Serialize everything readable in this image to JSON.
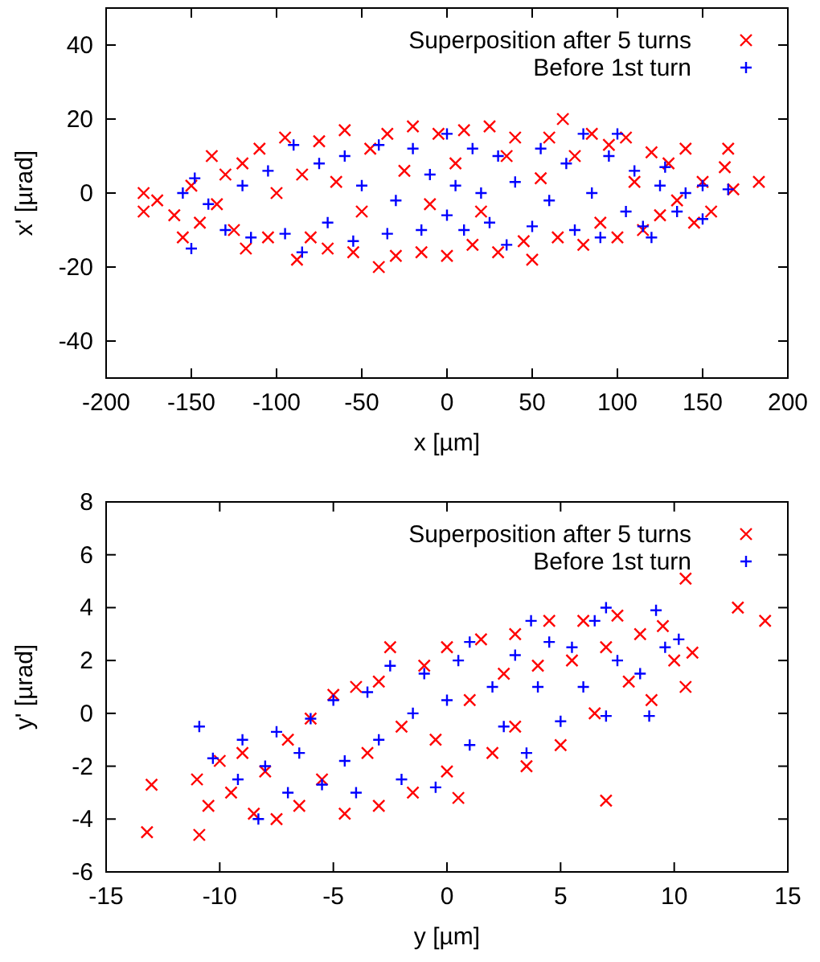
{
  "chart_data": [
    {
      "type": "scatter",
      "xlabel": "x [µm]",
      "ylabel": "x' [µrad]",
      "xlim": [
        -200,
        200
      ],
      "ylim": [
        -50,
        50
      ],
      "xticks": [
        -200,
        -150,
        -100,
        -50,
        0,
        50,
        100,
        150,
        200
      ],
      "yticks": [
        -40,
        -20,
        0,
        20,
        40
      ],
      "legend": "top right",
      "grid": false,
      "series": [
        {
          "name": "Superposition after 5 turns",
          "color": "#ff0000",
          "marker": "cross",
          "x": [
            -178,
            -178,
            -170,
            -160,
            -155,
            -150,
            -145,
            -138,
            -135,
            -130,
            -125,
            -120,
            -118,
            -110,
            -105,
            -100,
            -95,
            -88,
            -85,
            -80,
            -75,
            -70,
            -65,
            -60,
            -55,
            -50,
            -45,
            -40,
            -35,
            -30,
            -25,
            -20,
            -15,
            -10,
            -5,
            0,
            5,
            10,
            15,
            20,
            25,
            30,
            35,
            40,
            45,
            50,
            55,
            60,
            65,
            68,
            75,
            80,
            85,
            90,
            95,
            100,
            105,
            110,
            115,
            120,
            125,
            130,
            135,
            140,
            145,
            150,
            155,
            163,
            165,
            168,
            183
          ],
          "values": [
            0,
            -5,
            -2,
            -6,
            -12,
            2,
            -8,
            10,
            -3,
            5,
            -10,
            8,
            -15,
            12,
            -12,
            0,
            15,
            -18,
            5,
            -12,
            14,
            -15,
            3,
            17,
            -16,
            -5,
            12,
            -20,
            16,
            -17,
            6,
            18,
            -16,
            -3,
            16,
            -17,
            8,
            17,
            -14,
            -5,
            18,
            -16,
            10,
            15,
            -13,
            -18,
            4,
            15,
            -12,
            20,
            10,
            -14,
            16,
            -8,
            13,
            -12,
            15,
            3,
            -10,
            11,
            -6,
            8,
            -2,
            12,
            -8,
            3,
            -5,
            7,
            12,
            1,
            3
          ]
        },
        {
          "name": "Before 1st turn",
          "color": "#0000ff",
          "marker": "plus",
          "x": [
            -155,
            -150,
            -148,
            -140,
            -130,
            -120,
            -115,
            -105,
            -95,
            -90,
            -85,
            -75,
            -70,
            -60,
            -55,
            -50,
            -40,
            -35,
            -30,
            -20,
            -15,
            -10,
            0,
            0,
            5,
            10,
            15,
            20,
            25,
            30,
            35,
            40,
            50,
            55,
            60,
            70,
            75,
            80,
            85,
            90,
            95,
            100,
            105,
            110,
            115,
            120,
            125,
            128,
            135,
            140,
            150,
            150,
            165
          ],
          "values": [
            0,
            -15,
            4,
            -3,
            -10,
            2,
            -12,
            6,
            -11,
            13,
            -16,
            8,
            -8,
            10,
            -13,
            2,
            13,
            -11,
            -2,
            12,
            -10,
            5,
            16,
            -6,
            2,
            -10,
            12,
            0,
            -8,
            10,
            -14,
            3,
            -9,
            12,
            -2,
            8,
            -10,
            16,
            0,
            -12,
            10,
            16,
            -5,
            6,
            -9,
            -12,
            2,
            7,
            -5,
            0,
            -7,
            2,
            1
          ]
        }
      ]
    },
    {
      "type": "scatter",
      "xlabel": "y [µm]",
      "ylabel": "y' [µrad]",
      "xlim": [
        -15,
        15
      ],
      "ylim": [
        -6,
        8
      ],
      "xticks": [
        -15,
        -10,
        -5,
        0,
        5,
        10,
        15
      ],
      "yticks": [
        -6,
        -4,
        -2,
        0,
        2,
        4,
        6,
        8
      ],
      "legend": "top right",
      "grid": false,
      "series": [
        {
          "name": "Superposition after 5 turns",
          "color": "#ff0000",
          "marker": "cross",
          "x": [
            -13.2,
            -13,
            -10.9,
            -11,
            -10.5,
            -10,
            -9.5,
            -9,
            -8.5,
            -8,
            -7.5,
            -7,
            -6.5,
            -6,
            -5.5,
            -5,
            -4.5,
            -4,
            -3.5,
            -3,
            -3,
            -2.5,
            -2,
            -1.5,
            -1,
            -0.5,
            0,
            0,
            0.5,
            1,
            1.5,
            2,
            2.5,
            3,
            3,
            3.5,
            4,
            4.5,
            5,
            5.5,
            6,
            6.5,
            7,
            7,
            7.5,
            8,
            8.5,
            9,
            9.5,
            10,
            10.5,
            10.8,
            10.5,
            12.8,
            14
          ],
          "values": [
            -4.5,
            -2.7,
            -4.6,
            -2.5,
            -3.5,
            -1.8,
            -3,
            -1.5,
            -3.8,
            -2.2,
            -4,
            -1,
            -3.5,
            -0.2,
            -2.5,
            0.7,
            -3.8,
            1,
            -1.5,
            1.2,
            -3.5,
            2.5,
            -0.5,
            -3,
            1.8,
            -1,
            2.5,
            -2.2,
            -3.2,
            0.5,
            2.8,
            -1.5,
            1.5,
            3,
            -0.5,
            -2,
            1.8,
            3.5,
            -1.2,
            2,
            3.5,
            0,
            -3.3,
            2.5,
            3.7,
            1.2,
            3,
            0.5,
            3.3,
            2,
            1,
            2.3,
            5.1,
            4,
            3.5
          ]
        },
        {
          "name": "Before 1st turn",
          "color": "#0000ff",
          "marker": "plus",
          "x": [
            -10.9,
            -10.3,
            -9.2,
            -9,
            -8.3,
            -8,
            -7.5,
            -7,
            -6.5,
            -6,
            -5.5,
            -5,
            -4.5,
            -4,
            -3.5,
            -3,
            -2.5,
            -2,
            -1.5,
            -1,
            -0.5,
            0,
            0.5,
            1,
            1,
            2,
            2.5,
            3,
            3.5,
            3.7,
            4,
            4.5,
            5,
            5.5,
            6,
            6.5,
            7,
            7,
            7.5,
            8.5,
            8.9,
            9.2,
            9.6,
            10.2
          ],
          "values": [
            -0.5,
            -1.7,
            -2.5,
            -1,
            -4,
            -2,
            -0.7,
            -3,
            -1.5,
            -0.2,
            -2.7,
            0.5,
            -1.8,
            -3,
            0.8,
            -1,
            1.8,
            -2.5,
            0,
            1.5,
            -2.8,
            0.5,
            2,
            -1.2,
            2.7,
            1,
            -0.5,
            2.2,
            -1.5,
            3.5,
            1,
            2.7,
            -0.3,
            2.5,
            1,
            3.5,
            4,
            -0.1,
            2,
            1.5,
            -0.1,
            3.9,
            2.5,
            2.8
          ]
        }
      ]
    }
  ]
}
